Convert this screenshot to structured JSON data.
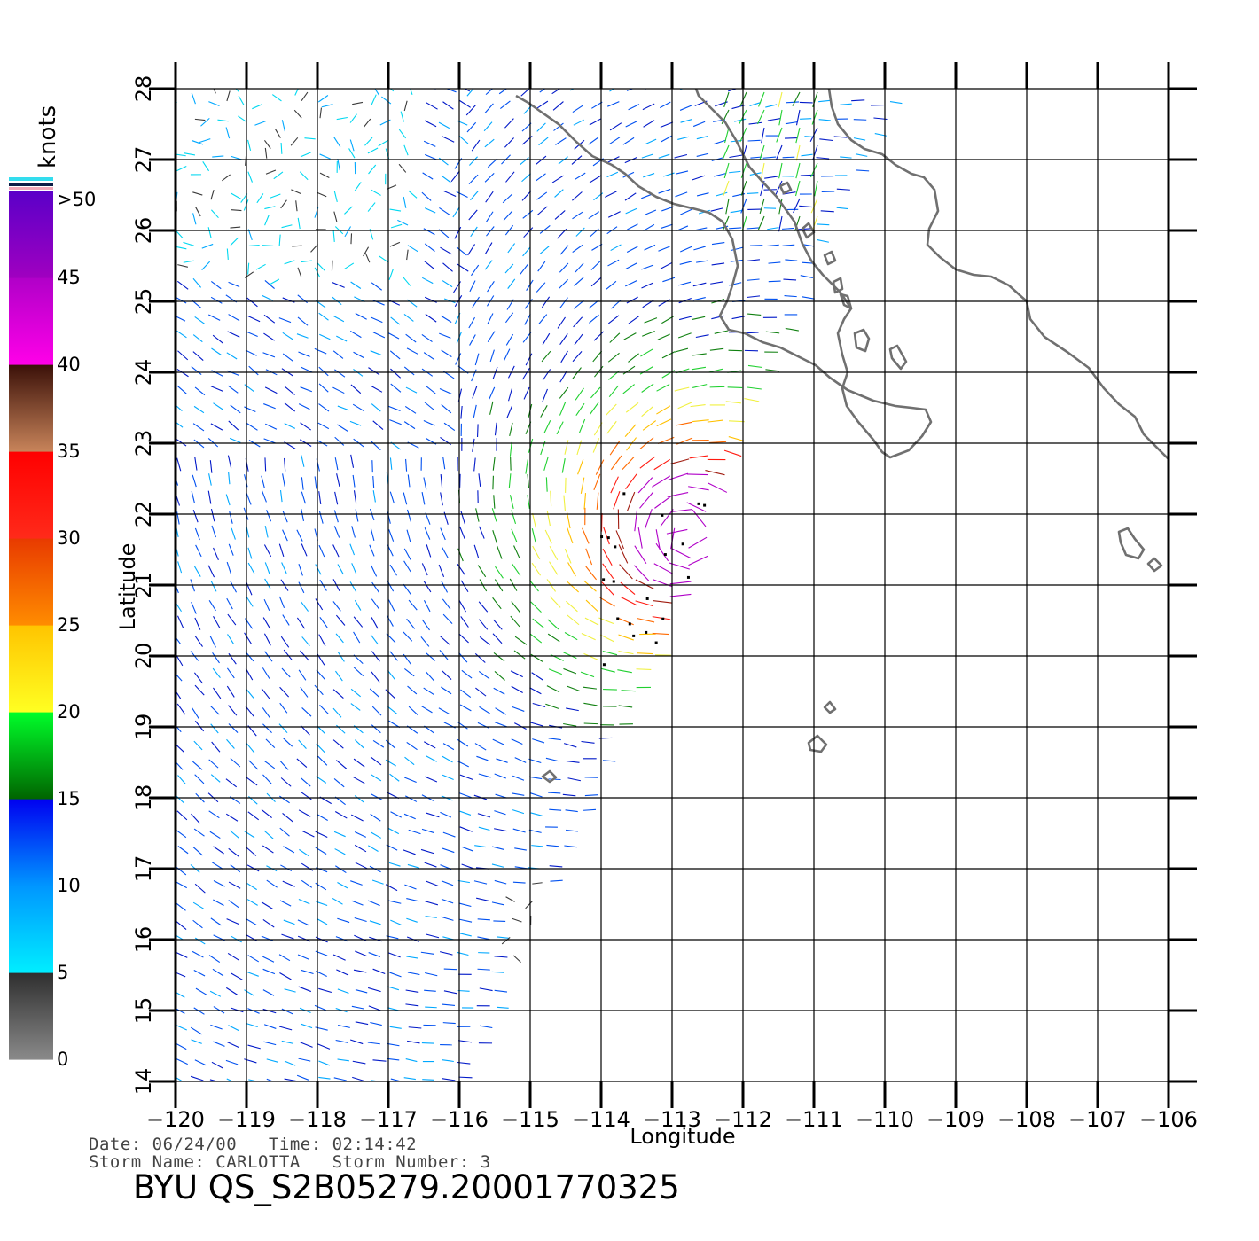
{
  "colorbar": {
    "unit_label": "knots",
    "tick_labels": [
      ">50",
      "45",
      "40",
      "35",
      "30",
      "25",
      "20",
      "15",
      "10",
      "5",
      "0"
    ],
    "bands": [
      {
        "from": 0,
        "to": 5,
        "colors": [
          "#8a8a8a",
          "#2e2e2e"
        ]
      },
      {
        "from": 5,
        "to": 10,
        "colors": [
          "#00eeff",
          "#0096ff"
        ]
      },
      {
        "from": 10,
        "to": 15,
        "colors": [
          "#0096ff",
          "#0000f0"
        ]
      },
      {
        "from": 15,
        "to": 20,
        "colors": [
          "#006400",
          "#00ff2a"
        ]
      },
      {
        "from": 20,
        "to": 25,
        "colors": [
          "#ffff22",
          "#ffc400"
        ]
      },
      {
        "from": 25,
        "to": 30,
        "colors": [
          "#ff8c00",
          "#e83a00"
        ]
      },
      {
        "from": 30,
        "to": 35,
        "colors": [
          "#ff2a1a",
          "#ff0000"
        ]
      },
      {
        "from": 35,
        "to": 40,
        "colors": [
          "#c8845a",
          "#3a1008"
        ]
      },
      {
        "from": 40,
        "to": 45,
        "colors": [
          "#ff00e8",
          "#b000c8"
        ]
      },
      {
        "from": 45,
        "to": 50,
        "colors": [
          "#a000c0",
          "#5a00c8"
        ]
      }
    ]
  },
  "axes": {
    "xlabel": "Longitude",
    "ylabel": "Latitude",
    "lon_range": [
      -120,
      -106
    ],
    "lat_range": [
      14,
      28
    ],
    "lon_ticks": [
      "−120",
      "−119",
      "−118",
      "−117",
      "−116",
      "−115",
      "−114",
      "−113",
      "−112",
      "−111",
      "−110",
      "−109",
      "−108",
      "−107",
      "−106"
    ],
    "lat_ticks": [
      "14",
      "15",
      "16",
      "17",
      "18",
      "19",
      "20",
      "21",
      "22",
      "23",
      "24",
      "25",
      "26",
      "27",
      "28"
    ],
    "grid": true
  },
  "map": {
    "coastline_color": "#707070",
    "storm_center": {
      "lon": -112.8,
      "lat": 21.7
    }
  },
  "footer": {
    "line1": "Date: 06/24/00   Time: 02:14:42",
    "line2": "Storm Name: CARLOTTA   Storm Number: 3",
    "file_id": "BYU QS_S2B05279.20001770325"
  }
}
